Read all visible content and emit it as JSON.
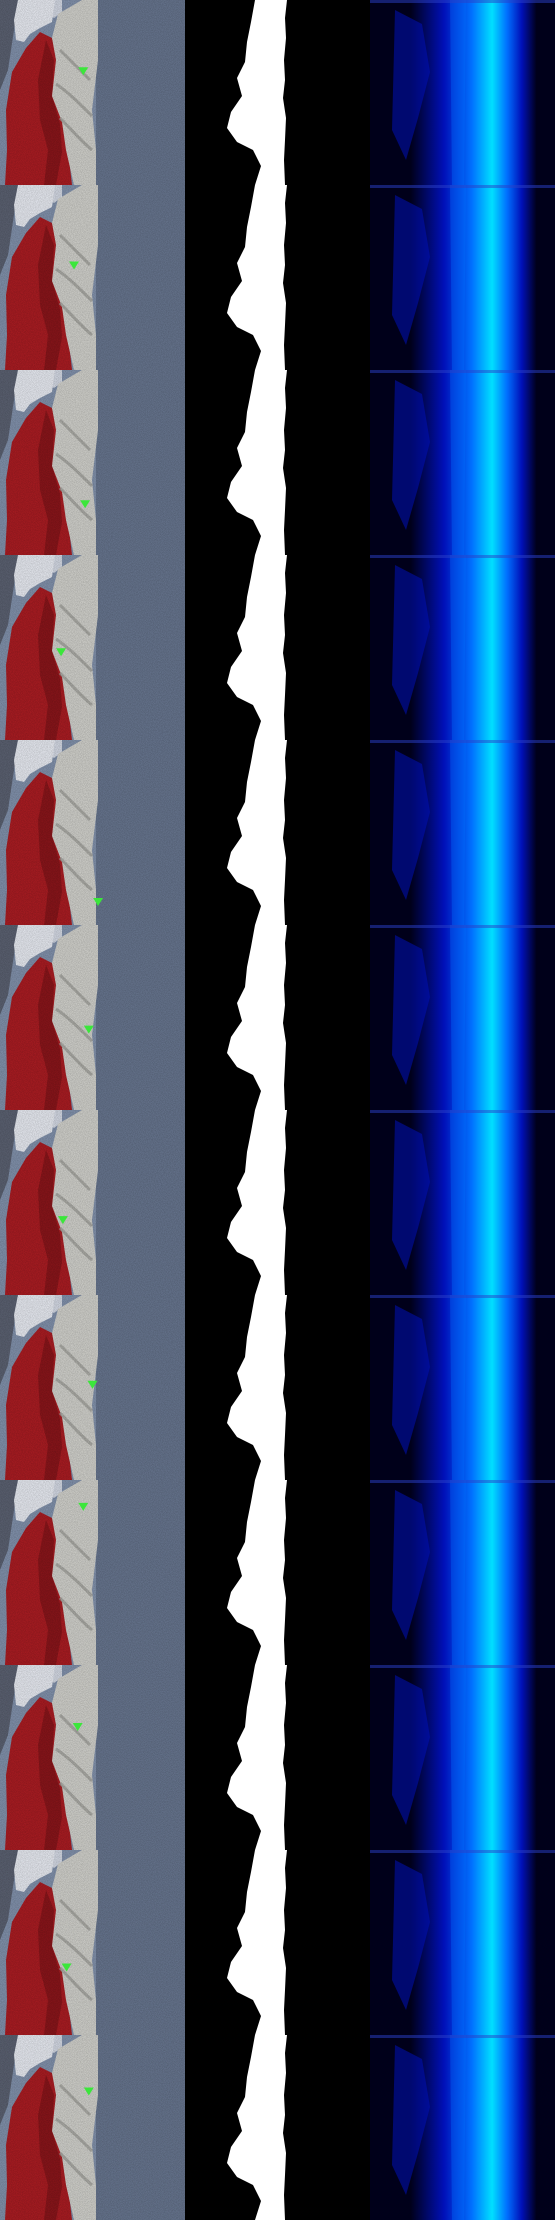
{
  "panel_names": [
    "noisy-photo-panel",
    "segmentation-mask-panel",
    "heatmap-panel"
  ],
  "colors": {
    "background": "#000000",
    "sky": "#e6e9f0",
    "rock_left": "#5a6070",
    "red_fabric": "#a81c22",
    "red_fabric_dark": "#6e1014",
    "white_fabric": "#cfcfca",
    "white_fabric_shade": "#9d9d98",
    "blue_fabric": "#8090aa",
    "blue_fabric_dark": "#46516a",
    "marker": "#3be63b",
    "mask_fg": "#ffffff",
    "mask_bg": "#000000",
    "heat_bg": "#00001a",
    "heat_blue": "#0010b8",
    "heat_mid": "#0070ff",
    "heat_hot": "#00e0ff"
  },
  "markers": [
    {
      "x": 0.45,
      "y": 0.38
    },
    {
      "x": 0.4,
      "y": 0.43
    },
    {
      "x": 0.46,
      "y": 0.72
    },
    {
      "x": 0.33,
      "y": 0.52
    },
    {
      "x": 0.53,
      "y": 0.87
    },
    {
      "x": 0.48,
      "y": 0.56
    },
    {
      "x": 0.34,
      "y": 0.59
    },
    {
      "x": 0.5,
      "y": 0.48
    },
    {
      "x": 0.45,
      "y": 0.14
    },
    {
      "x": 0.42,
      "y": 0.33
    },
    {
      "x": 0.36,
      "y": 0.63
    },
    {
      "x": 0.48,
      "y": 0.3
    }
  ]
}
